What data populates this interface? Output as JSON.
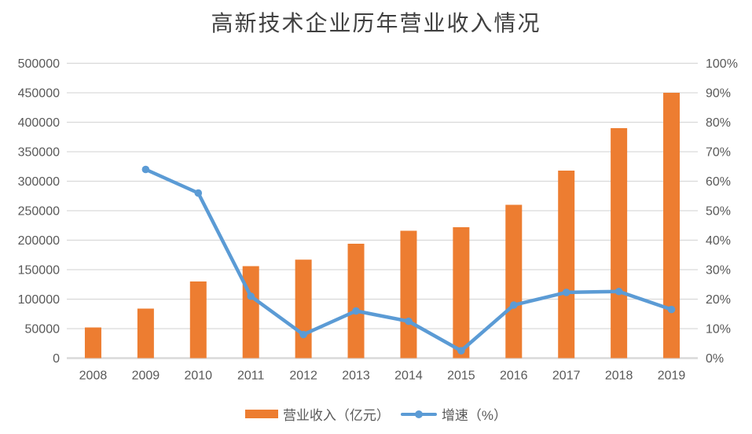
{
  "chart_data": {
    "type": "combo-bar-line",
    "title": "高新技术企业历年营业收入情况",
    "categories": [
      "2008",
      "2009",
      "2010",
      "2011",
      "2012",
      "2013",
      "2014",
      "2015",
      "2016",
      "2017",
      "2018",
      "2019"
    ],
    "series": [
      {
        "name": "营业收入（亿元）",
        "type": "bar",
        "axis": "left",
        "color": "#ED7D31",
        "values": [
          52000,
          84000,
          130000,
          156000,
          167000,
          194000,
          216000,
          222000,
          260000,
          318000,
          390000,
          450000
        ]
      },
      {
        "name": "增速（%）",
        "type": "line",
        "axis": "right",
        "color": "#5B9BD5",
        "values": [
          null,
          64,
          56,
          21,
          8,
          16,
          12.5,
          2.5,
          18,
          22.3,
          22.6,
          16.5
        ]
      }
    ],
    "left_axis": {
      "min": 0,
      "max": 500000,
      "step": 50000,
      "ticks": [
        "0",
        "50000",
        "100000",
        "150000",
        "200000",
        "250000",
        "300000",
        "350000",
        "400000",
        "450000",
        "500000"
      ]
    },
    "right_axis": {
      "min": 0,
      "max": 100,
      "step": 10,
      "ticks": [
        "0%",
        "10%",
        "20%",
        "30%",
        "40%",
        "50%",
        "60%",
        "70%",
        "80%",
        "90%",
        "100%"
      ]
    },
    "grid": true,
    "legend_position": "bottom",
    "colors": {
      "bar": "#ED7D31",
      "line": "#5B9BD5",
      "gridline": "#D9D9D9",
      "axis_line": "#D9D9D9",
      "axis_text": "#595959",
      "title_text": "#404040",
      "background": "#FFFFFF"
    }
  }
}
